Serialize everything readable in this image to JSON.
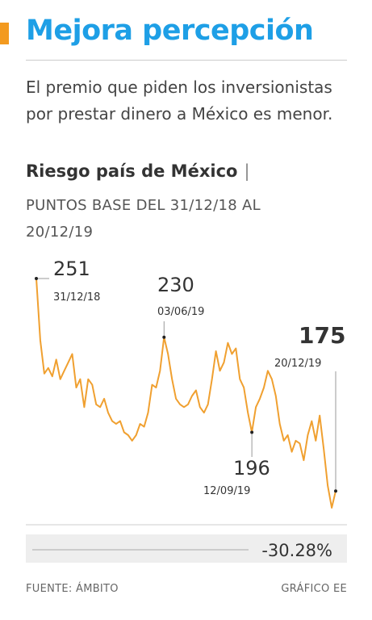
{
  "chart_data": {
    "type": "line",
    "title": "Mejora percepción",
    "subtitle": "El premio que piden los inversionistas por prestar dinero a México es menor.",
    "chart_title": "Riesgo país de México",
    "units": "PUNTOS BASE DEL 31/12/18 AL 20/12/19",
    "color": "#f0a030",
    "categories": [
      "31/12/18",
      null,
      null,
      null,
      null,
      null,
      null,
      null,
      null,
      null,
      null,
      null,
      null,
      null,
      null,
      null,
      null,
      null,
      null,
      null,
      null,
      null,
      null,
      null,
      null,
      null,
      null,
      null,
      null,
      null,
      null,
      null,
      "03/06/19",
      null,
      null,
      null,
      null,
      null,
      null,
      null,
      null,
      null,
      null,
      null,
      null,
      null,
      null,
      null,
      null,
      null,
      null,
      null,
      null,
      null,
      "12/09/19",
      null,
      null,
      null,
      null,
      null,
      null,
      null,
      null,
      null,
      null,
      null,
      null,
      null,
      null,
      null,
      null,
      null,
      null,
      null,
      null,
      "20/12/19"
    ],
    "values": [
      251,
      229,
      217,
      219,
      216,
      222,
      215,
      218,
      221,
      224,
      212,
      215,
      205,
      215,
      213,
      206,
      205,
      208,
      203,
      200,
      199,
      200,
      196,
      195,
      193,
      195,
      199,
      198,
      203,
      213,
      212,
      218,
      230,
      224,
      215,
      208,
      206,
      205,
      206,
      209,
      211,
      205,
      203,
      206,
      215,
      225,
      218,
      221,
      228,
      224,
      226,
      215,
      212,
      203,
      196,
      205,
      208,
      212,
      218,
      215,
      209,
      199,
      193,
      195,
      189,
      193,
      192,
      186,
      195,
      200,
      193,
      202,
      190,
      177,
      169,
      175
    ],
    "change": {
      "value": -30.28,
      "label": "-30.28%"
    },
    "source": "FUENTE: ÁMBITO",
    "credit": "GRÁFICO EE"
  }
}
